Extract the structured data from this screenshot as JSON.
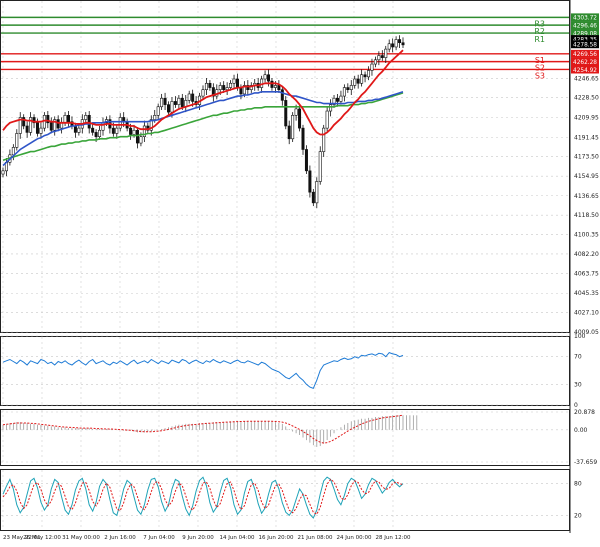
{
  "chart_data": [
    {
      "panel": "price",
      "type": "candlestick",
      "ylim": [
        4009.05,
        4320.0
      ],
      "y_ticks": [
        "4246.65",
        "4228.50",
        "4209.95",
        "4191.45",
        "4173.50",
        "4154.95",
        "4136.65",
        "4118.50",
        "4100.35",
        "4082.20",
        "4063.75",
        "4045.35",
        "4027.10",
        "4009.05"
      ],
      "x_ticks": [
        "23 May 22:01",
        "26 May 12:00",
        "31 May 00:00",
        "2 Jun 16:00",
        "7 Jun 04:00",
        "9 Jun 20:00",
        "14 Jun 04:00",
        "16 Jun 20:00",
        "21 Jun 08:00",
        "24 Jun 00:00",
        "28 Jun 12:00"
      ],
      "levels": [
        {
          "name": "R3",
          "value": 4303.72,
          "label": "4303.72",
          "color": "#2e8b2e"
        },
        {
          "name": "R2",
          "value": 4296.46,
          "label": "4296.46",
          "color": "#2e8b2e"
        },
        {
          "name": "R1",
          "value": 4289.08,
          "label": "4289.08",
          "color": "#2e8b2e"
        },
        {
          "name": "S1",
          "value": 4269.56,
          "label": "4269.56",
          "color": "#e01818"
        },
        {
          "name": "S2",
          "value": 4262.28,
          "label": "4262.28",
          "color": "#e01818"
        },
        {
          "name": "S3",
          "value": 4254.92,
          "label": "4254.92",
          "color": "#e01818"
        }
      ],
      "other_axis_labels": [
        {
          "label": "4283.35",
          "value": 4283.35,
          "color": "#ffffff",
          "bg": "#000000"
        },
        {
          "label": "4278.58",
          "value": 4278.58,
          "color": "#ffffff",
          "bg": "#000000"
        }
      ],
      "close": [
        4160,
        4168,
        4175,
        4182,
        4195,
        4210,
        4202,
        4196,
        4210,
        4205,
        4195,
        4200,
        4212,
        4205,
        4198,
        4208,
        4200,
        4205,
        4212,
        4206,
        4202,
        4196,
        4200,
        4208,
        4212,
        4200,
        4196,
        4192,
        4198,
        4205,
        4208,
        4200,
        4195,
        4200,
        4210,
        4206,
        4200,
        4194,
        4198,
        4186,
        4192,
        4202,
        4198,
        4208,
        4212,
        4220,
        4228,
        4222,
        4215,
        4225,
        4222,
        4228,
        4220,
        4226,
        4232,
        4225,
        4222,
        4230,
        4236,
        4242,
        4238,
        4230,
        4236,
        4240,
        4236,
        4238,
        4242,
        4246,
        4238,
        4232,
        4240,
        4236,
        4240,
        4242,
        4238,
        4246,
        4250,
        4244,
        4238,
        4240,
        4236,
        4226,
        4202,
        4190,
        4212,
        4218,
        4200,
        4180,
        4160,
        4140,
        4130,
        4150,
        4178,
        4200,
        4216,
        4222,
        4228,
        4225,
        4230,
        4238,
        4236,
        4240,
        4246,
        4242,
        4250,
        4248,
        4254,
        4260,
        4264,
        4268,
        4266,
        4274,
        4279,
        4276,
        4283,
        4280,
        4278
      ],
      "ma_red": [
        4198,
        4202,
        4205,
        4206,
        4207,
        4208,
        4208,
        4207,
        4207,
        4206,
        4206,
        4206,
        4207,
        4207,
        4206,
        4206,
        4205,
        4205,
        4205,
        4205,
        4205,
        4204,
        4204,
        4204,
        4205,
        4205,
        4204,
        4203,
        4203,
        4203,
        4204,
        4204,
        4203,
        4203,
        4203,
        4203,
        4203,
        4202,
        4202,
        4200,
        4199,
        4199,
        4199,
        4200,
        4202,
        4205,
        4208,
        4210,
        4212,
        4214,
        4216,
        4218,
        4219,
        4220,
        4221,
        4222,
        4223,
        4225,
        4227,
        4229,
        4230,
        4231,
        4232,
        4233,
        4234,
        4235,
        4236,
        4237,
        4238,
        4238,
        4239,
        4239,
        4239,
        4240,
        4240,
        4241,
        4242,
        4242,
        4242,
        4242,
        4241,
        4239,
        4236,
        4232,
        4229,
        4226,
        4222,
        4218,
        4212,
        4206,
        4200,
        4196,
        4194,
        4194,
        4196,
        4199,
        4203,
        4206,
        4209,
        4213,
        4216,
        4220,
        4224,
        4227,
        4231,
        4234,
        4238,
        4242,
        4246,
        4250,
        4253,
        4257,
        4261,
        4264,
        4267,
        4270,
        4273
      ],
      "ma_blue": [
        4165,
        4168,
        4171,
        4174,
        4177,
        4180,
        4182,
        4184,
        4186,
        4188,
        4190,
        4191,
        4193,
        4194,
        4196,
        4197,
        4198,
        4199,
        4200,
        4201,
        4202,
        4202,
        4203,
        4203,
        4204,
        4204,
        4205,
        4205,
        4205,
        4205,
        4206,
        4206,
        4206,
        4206,
        4206,
        4206,
        4206,
        4206,
        4206,
        4206,
        4206,
        4206,
        4206,
        4207,
        4207,
        4208,
        4209,
        4210,
        4211,
        4212,
        4213,
        4214,
        4215,
        4216,
        4217,
        4218,
        4219,
        4220,
        4221,
        4222,
        4223,
        4224,
        4225,
        4226,
        4226,
        4227,
        4228,
        4229,
        4230,
        4230,
        4231,
        4231,
        4232,
        4233,
        4233,
        4234,
        4234,
        4234,
        4234,
        4234,
        4234,
        4233,
        4232,
        4231,
        4230,
        4230,
        4229,
        4228,
        4227,
        4226,
        4225,
        4224,
        4224,
        4223,
        4223,
        4223,
        4223,
        4223,
        4223,
        4223,
        4224,
        4224,
        4224,
        4225,
        4225,
        4225,
        4226,
        4226,
        4227,
        4227,
        4228,
        4229,
        4230,
        4231,
        4232,
        4233,
        4234
      ],
      "ma_green": [
        4170,
        4171,
        4172,
        4173,
        4174,
        4175,
        4176,
        4177,
        4178,
        4178,
        4179,
        4180,
        4181,
        4182,
        4183,
        4183,
        4184,
        4185,
        4185,
        4186,
        4186,
        4187,
        4187,
        4188,
        4188,
        4189,
        4189,
        4189,
        4190,
        4190,
        4190,
        4191,
        4191,
        4191,
        4192,
        4192,
        4192,
        4193,
        4193,
        4193,
        4194,
        4194,
        4195,
        4195,
        4196,
        4196,
        4197,
        4198,
        4199,
        4200,
        4201,
        4202,
        4203,
        4204,
        4205,
        4206,
        4207,
        4208,
        4209,
        4210,
        4211,
        4212,
        4212,
        4213,
        4214,
        4214,
        4215,
        4216,
        4216,
        4217,
        4217,
        4218,
        4218,
        4219,
        4219,
        4219,
        4220,
        4220,
        4220,
        4220,
        4220,
        4220,
        4220,
        4220,
        4220,
        4220,
        4220,
        4220,
        4220,
        4220,
        4220,
        4220,
        4220,
        4220,
        4220,
        4220,
        4220,
        4221,
        4221,
        4221,
        4221,
        4222,
        4222,
        4222,
        4223,
        4223,
        4224,
        4224,
        4225,
        4226,
        4227,
        4228,
        4229,
        4230,
        4231,
        4232,
        4233
      ]
    },
    {
      "panel": "rsi",
      "type": "line",
      "ylim": [
        0,
        100
      ],
      "y_ticks": [
        "100",
        "70",
        "30",
        "0"
      ],
      "values": [
        62,
        64,
        66,
        63,
        60,
        65,
        62,
        58,
        64,
        62,
        60,
        66,
        64,
        60,
        62,
        58,
        63,
        61,
        64,
        60,
        58,
        62,
        65,
        61,
        58,
        63,
        66,
        60,
        62,
        64,
        60,
        58,
        62,
        60,
        64,
        61,
        58,
        62,
        65,
        60,
        62,
        64,
        61,
        66,
        63,
        60,
        64,
        62,
        60,
        65,
        63,
        61,
        66,
        64,
        60,
        63,
        65,
        62,
        60,
        64,
        62,
        66,
        63,
        61,
        64,
        62,
        60,
        63,
        65,
        62,
        61,
        64,
        62,
        60,
        58,
        62,
        60,
        56,
        52,
        50,
        48,
        44,
        40,
        38,
        42,
        46,
        40,
        36,
        30,
        26,
        24,
        36,
        50,
        58,
        60,
        62,
        64,
        63,
        66,
        68,
        66,
        67,
        70,
        68,
        72,
        71,
        73,
        74,
        72,
        75,
        74,
        70,
        76,
        74,
        73,
        70,
        72
      ]
    },
    {
      "panel": "macd",
      "type": "bar+line",
      "ylim": [
        -37.659,
        20.878
      ],
      "y_ticks": [
        "20.878",
        "0.00",
        "-37.659"
      ],
      "histogram": [
        6,
        7,
        8,
        8,
        9,
        9,
        8,
        8,
        7,
        7,
        6,
        6,
        5,
        5,
        4,
        4,
        3,
        3,
        3,
        2,
        2,
        2,
        2,
        2,
        2,
        2,
        1,
        1,
        1,
        1,
        1,
        1,
        0,
        0,
        0,
        -1,
        -1,
        -1,
        -2,
        -3,
        -3,
        -3,
        -2,
        -2,
        -1,
        0,
        1,
        2,
        3,
        4,
        5,
        6,
        6,
        7,
        7,
        7,
        7,
        8,
        8,
        8,
        8,
        9,
        9,
        9,
        9,
        9,
        10,
        10,
        10,
        10,
        10,
        10,
        10,
        10,
        10,
        10,
        10,
        10,
        10,
        9,
        8,
        7,
        4,
        1,
        -2,
        -4,
        -6,
        -9,
        -12,
        -15,
        -18,
        -20,
        -19,
        -16,
        -12,
        -8,
        -4,
        0,
        3,
        6,
        8,
        10,
        11,
        12,
        13,
        13,
        14,
        14,
        15,
        15,
        16,
        16,
        16,
        17,
        17,
        17,
        17,
        17,
        17,
        17,
        17
      ],
      "signal": [
        6,
        6.5,
        7,
        7.5,
        8,
        8,
        8,
        8,
        7.5,
        7.5,
        7,
        6.5,
        6,
        5.5,
        5,
        4.5,
        4,
        3.5,
        3.3,
        3,
        2.8,
        2.5,
        2.2,
        2,
        2,
        2,
        1.8,
        1.5,
        1.3,
        1.2,
        1,
        1,
        0.8,
        0.5,
        0.3,
        0,
        -0.3,
        -0.6,
        -1,
        -1.5,
        -2,
        -2.3,
        -2.3,
        -2.2,
        -2,
        -1.5,
        -1,
        -0.2,
        0.5,
        1.5,
        2.5,
        3.5,
        4.2,
        5,
        5.6,
        6,
        6.4,
        6.8,
        7.2,
        7.5,
        7.8,
        8,
        8.3,
        8.5,
        8.8,
        9,
        9.2,
        9.4,
        9.6,
        9.8,
        9.9,
        10,
        10,
        10,
        10,
        10,
        10,
        10,
        10,
        9.8,
        9.5,
        9,
        8,
        6.5,
        4.5,
        2.5,
        0.5,
        -2,
        -4.5,
        -7,
        -10,
        -12.5,
        -14.5,
        -15.5,
        -15,
        -13.5,
        -11.5,
        -9,
        -6.5,
        -4,
        -1.5,
        1,
        3,
        5,
        7,
        8.5,
        10,
        11,
        12,
        13,
        14,
        14.5,
        15,
        15.5,
        16,
        16.5,
        17
      ]
    },
    {
      "panel": "stochastic",
      "type": "line",
      "ylim": [
        0,
        100
      ],
      "y_ticks": [
        "80",
        "20"
      ],
      "k": [
        60,
        75,
        88,
        70,
        40,
        25,
        35,
        60,
        85,
        90,
        72,
        45,
        30,
        40,
        70,
        88,
        82,
        55,
        30,
        22,
        40,
        68,
        85,
        90,
        70,
        40,
        28,
        45,
        75,
        88,
        80,
        50,
        25,
        20,
        42,
        70,
        86,
        80,
        55,
        30,
        22,
        40,
        68,
        88,
        90,
        74,
        46,
        28,
        40,
        70,
        88,
        84,
        56,
        32,
        20,
        38,
        66,
        86,
        92,
        76,
        44,
        26,
        36,
        64,
        86,
        90,
        72,
        40,
        22,
        30,
        62,
        84,
        88,
        70,
        42,
        24,
        34,
        60,
        82,
        86,
        70,
        44,
        26,
        20,
        30,
        50,
        70,
        60,
        40,
        22,
        15,
        30,
        60,
        85,
        92,
        88,
        70,
        50,
        40,
        58,
        80,
        90,
        86,
        70,
        52,
        60,
        78,
        90,
        86,
        74,
        62,
        70,
        82,
        88,
        80,
        74,
        80
      ],
      "d": [
        55,
        62,
        74,
        78,
        66,
        45,
        33,
        40,
        60,
        78,
        82,
        69,
        49,
        38,
        47,
        66,
        80,
        75,
        56,
        36,
        31,
        43,
        64,
        81,
        82,
        67,
        46,
        38,
        49,
        69,
        81,
        73,
        52,
        32,
        29,
        44,
        66,
        79,
        74,
        55,
        36,
        31,
        43,
        65,
        82,
        84,
        70,
        49,
        38,
        46,
        66,
        81,
        76,
        57,
        36,
        30,
        41,
        63,
        81,
        83,
        71,
        49,
        35,
        42,
        62,
        80,
        83,
        67,
        45,
        31,
        38,
        59,
        78,
        81,
        67,
        45,
        33,
        39,
        59,
        76,
        79,
        67,
        47,
        30,
        25,
        33,
        50,
        60,
        57,
        41,
        26,
        22,
        35,
        58,
        79,
        88,
        83,
        69,
        53,
        49,
        59,
        76,
        85,
        82,
        69,
        61,
        63,
        76,
        85,
        83,
        74,
        69,
        71,
        80,
        83,
        80,
        78
      ]
    }
  ]
}
